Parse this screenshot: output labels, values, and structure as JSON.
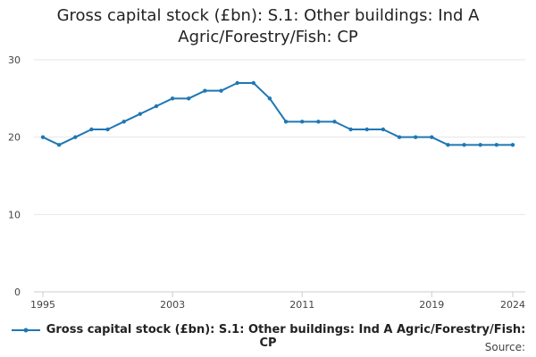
{
  "chart_data": {
    "type": "line",
    "title": "Gross capital stock (£bn): S.1: Other buildings: Ind A Agric/Forestry/Fish: CP",
    "xlabel": "",
    "ylabel": "",
    "x": [
      1995,
      1996,
      1997,
      1998,
      1999,
      2000,
      2001,
      2002,
      2003,
      2004,
      2005,
      2006,
      2007,
      2008,
      2009,
      2010,
      2011,
      2012,
      2013,
      2014,
      2015,
      2016,
      2017,
      2018,
      2019,
      2020,
      2021,
      2022,
      2023,
      2024
    ],
    "series": [
      {
        "name": "Gross capital stock (£bn): S.1: Other buildings: Ind A Agric/Forestry/Fish: CP",
        "color": "#1f77b4",
        "values": [
          20,
          19,
          20,
          21,
          21,
          22,
          23,
          24,
          25,
          25,
          26,
          26,
          27,
          27,
          25,
          22,
          22,
          22,
          22,
          21,
          21,
          21,
          20,
          20,
          20,
          19,
          19,
          19,
          19,
          19
        ]
      }
    ],
    "xticks": [
      1995,
      2003,
      2011,
      2019,
      2024
    ],
    "yticks": [
      0,
      10,
      20,
      30
    ],
    "xlim": [
      1995,
      2024
    ],
    "ylim": [
      0,
      30
    ],
    "grid": "horizontal",
    "legend": "bottom"
  },
  "footer": {
    "source_label": "Source:"
  }
}
